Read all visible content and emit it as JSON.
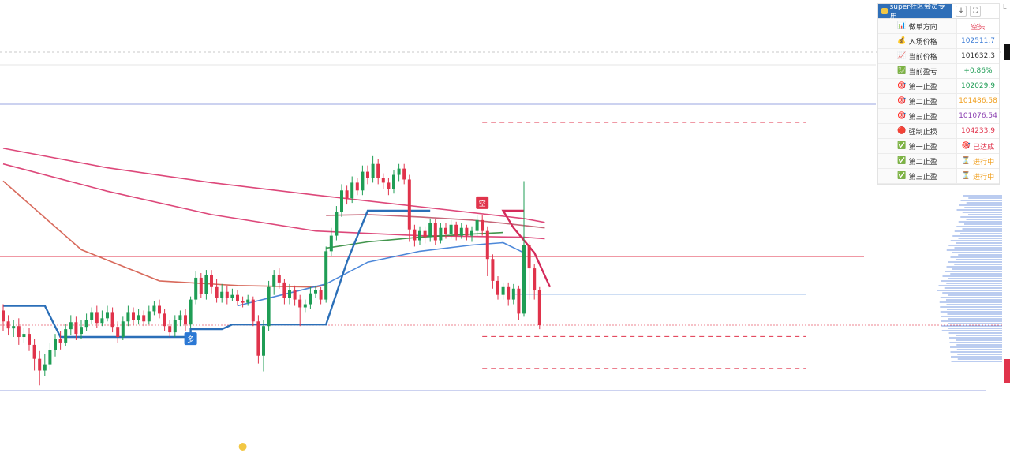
{
  "panel": {
    "title": "super社区会员专用",
    "buttons": [
      "↓",
      "⛶"
    ],
    "rows": [
      {
        "label": "做单方向",
        "value": "空头",
        "label_icon": "📊",
        "color": "#e0334b"
      },
      {
        "label": "入场价格",
        "value": "102511.7",
        "label_icon": "💰",
        "color": "#3a7bd5"
      },
      {
        "label": "当前价格",
        "value": "101632.3",
        "label_icon": "📈",
        "color": "#333333"
      },
      {
        "label": "当前盈亏",
        "value": "+0.86%",
        "label_icon": "💹",
        "color": "#1f9d55"
      },
      {
        "label": "第一止盈",
        "value": "102029.9",
        "label_icon": "🎯",
        "color": "#1f9d55"
      },
      {
        "label": "第二止盈",
        "value": "101486.58",
        "label_icon": "🎯",
        "color": "#f0a020"
      },
      {
        "label": "第三止盈",
        "value": "101076.54",
        "label_icon": "🎯",
        "color": "#8a3fb0"
      },
      {
        "label": "强制止损",
        "value": "104233.9",
        "label_icon": "🔴",
        "color": "#e0334b"
      },
      {
        "label": "第一止盈",
        "value": "已达成",
        "label_icon": "✅",
        "value_icon": "🎯",
        "color": "#e0334b"
      },
      {
        "label": "第二止盈",
        "value": "进行中",
        "label_icon": "✅",
        "value_icon": "⏳",
        "color": "#f0a020"
      },
      {
        "label": "第三止盈",
        "value": "进行中",
        "label_icon": "✅",
        "value_icon": "⏳",
        "color": "#f0a020"
      }
    ]
  },
  "corner_label": "L",
  "chart_data": {
    "type": "candlestick",
    "ylim": [
      99800,
      105600
    ],
    "colors": {
      "up": "#1f9d55",
      "down": "#e0334b"
    },
    "markers": [
      {
        "index": 36,
        "label": "多",
        "side": "long",
        "color": "#2b78d4"
      },
      {
        "index": 92,
        "label": "空",
        "side": "short",
        "color": "#e0334b"
      }
    ],
    "levels": [
      {
        "price": 104233.9,
        "style": "dashed",
        "color": "#e0334b"
      },
      {
        "price": 102511.7,
        "style": "solid",
        "color": "#e0334b"
      },
      {
        "price": 101632.3,
        "style": "dotted",
        "color": "#e0334b"
      },
      {
        "price": 102029.9,
        "style": "solid",
        "color": "#3a7bd5"
      },
      {
        "price": 101486.58,
        "style": "dashed",
        "color": "#e0334b"
      },
      {
        "price": 101076.54,
        "style": "dashed",
        "color": "#e0334b"
      }
    ],
    "candles": [
      [
        101820,
        101680,
        101900,
        101560
      ],
      [
        101680,
        101590,
        101760,
        101500
      ],
      [
        101590,
        101620,
        101700,
        101480
      ],
      [
        101620,
        101480,
        101720,
        101380
      ],
      [
        101480,
        101520,
        101600,
        101400
      ],
      [
        101520,
        101380,
        101600,
        101300
      ],
      [
        101380,
        101200,
        101450,
        101050
      ],
      [
        101200,
        101050,
        101300,
        100860
      ],
      [
        101050,
        101130,
        101260,
        100980
      ],
      [
        101130,
        101310,
        101400,
        101060
      ],
      [
        101310,
        101450,
        101520,
        101230
      ],
      [
        101450,
        101410,
        101560,
        101320
      ],
      [
        101410,
        101580,
        101650,
        101360
      ],
      [
        101580,
        101670,
        101760,
        101500
      ],
      [
        101670,
        101520,
        101740,
        101440
      ],
      [
        101520,
        101610,
        101700,
        101460
      ],
      [
        101610,
        101700,
        101780,
        101560
      ],
      [
        101700,
        101800,
        101860,
        101640
      ],
      [
        101800,
        101660,
        101880,
        101600
      ],
      [
        101660,
        101720,
        101820,
        101620
      ],
      [
        101720,
        101800,
        101880,
        101680
      ],
      [
        101800,
        101610,
        101860,
        101540
      ],
      [
        101610,
        101480,
        101680,
        101400
      ],
      [
        101480,
        101680,
        101740,
        101440
      ],
      [
        101680,
        101800,
        101880,
        101620
      ],
      [
        101800,
        101700,
        101860,
        101630
      ],
      [
        101700,
        101760,
        101840,
        101640
      ],
      [
        101760,
        101680,
        101820,
        101620
      ],
      [
        101680,
        101810,
        101880,
        101640
      ],
      [
        101810,
        101880,
        101940,
        101760
      ],
      [
        101880,
        101780,
        101960,
        101720
      ],
      [
        101780,
        101620,
        101840,
        101560
      ],
      [
        101620,
        101540,
        101700,
        101480
      ],
      [
        101540,
        101700,
        101760,
        101480
      ],
      [
        101700,
        101760,
        101820,
        101620
      ],
      [
        101760,
        101640,
        101840,
        101560
      ],
      [
        101640,
        101960,
        102000,
        101600
      ],
      [
        101960,
        102240,
        102320,
        101900
      ],
      [
        102240,
        102030,
        102300,
        101980
      ],
      [
        102030,
        102280,
        102340,
        101960
      ],
      [
        102280,
        102120,
        102340,
        102040
      ],
      [
        102120,
        101980,
        102220,
        101920
      ],
      [
        101980,
        102060,
        102160,
        101920
      ],
      [
        102060,
        101980,
        102140,
        101900
      ],
      [
        101980,
        102020,
        102100,
        101940
      ],
      [
        102020,
        101940,
        102080,
        101880
      ],
      [
        101940,
        101920,
        102000,
        101860
      ],
      [
        101920,
        101960,
        102020,
        101880
      ],
      [
        101960,
        101680,
        102000,
        101620
      ],
      [
        101680,
        101240,
        101760,
        101140
      ],
      [
        101240,
        101620,
        101700,
        101040
      ],
      [
        101620,
        102120,
        102200,
        101560
      ],
      [
        102120,
        102280,
        102340,
        102020
      ],
      [
        102280,
        102180,
        102360,
        102100
      ],
      [
        102180,
        101980,
        102220,
        101900
      ],
      [
        101980,
        102080,
        102160,
        101900
      ],
      [
        102080,
        101960,
        102140,
        101880
      ],
      [
        101960,
        101860,
        102020,
        101620
      ],
      [
        101860,
        101900,
        101960,
        101800
      ],
      [
        101900,
        102040,
        102120,
        101840
      ],
      [
        102040,
        102080,
        102140,
        101980
      ],
      [
        102080,
        101960,
        102120,
        101900
      ],
      [
        101960,
        102580,
        102640,
        101920
      ],
      [
        102580,
        102780,
        102880,
        102520
      ],
      [
        102780,
        103080,
        103160,
        102720
      ],
      [
        103080,
        103360,
        103440,
        103020
      ],
      [
        103360,
        103260,
        103420,
        103180
      ],
      [
        103260,
        103460,
        103540,
        103200
      ],
      [
        103460,
        103360,
        103520,
        103300
      ],
      [
        103360,
        103600,
        103680,
        103300
      ],
      [
        103600,
        103520,
        103680,
        103440
      ],
      [
        103520,
        103700,
        103800,
        103460
      ],
      [
        103700,
        103520,
        103760,
        103440
      ],
      [
        103520,
        103460,
        103580,
        103380
      ],
      [
        103460,
        103380,
        103520,
        103300
      ],
      [
        103380,
        103560,
        103620,
        103320
      ],
      [
        103560,
        103640,
        103700,
        103480
      ],
      [
        103640,
        103500,
        103700,
        103440
      ],
      [
        103500,
        102860,
        103560,
        102700
      ],
      [
        102860,
        102720,
        102920,
        102640
      ],
      [
        102720,
        102840,
        102900,
        102660
      ],
      [
        102840,
        102760,
        102900,
        102680
      ],
      [
        102760,
        102940,
        103000,
        102700
      ],
      [
        102940,
        102720,
        103000,
        102660
      ],
      [
        102720,
        102880,
        102940,
        102680
      ],
      [
        102880,
        102800,
        102940,
        102740
      ],
      [
        102800,
        102920,
        102980,
        102740
      ],
      [
        102920,
        102780,
        102960,
        102720
      ],
      [
        102780,
        102880,
        102940,
        102740
      ],
      [
        102880,
        102780,
        102920,
        102720
      ],
      [
        102780,
        102840,
        102900,
        102700
      ],
      [
        102840,
        102980,
        103040,
        102780
      ],
      [
        102980,
        102840,
        103040,
        102780
      ],
      [
        102840,
        102480,
        102900,
        102260
      ],
      [
        102480,
        102200,
        102540,
        102100
      ],
      [
        102200,
        102020,
        102260,
        101960
      ],
      [
        102020,
        102120,
        102180,
        101960
      ],
      [
        102120,
        101960,
        102180,
        101880
      ],
      [
        101960,
        102100,
        102160,
        101900
      ],
      [
        102100,
        101780,
        102140,
        101700
      ],
      [
        101780,
        102660,
        103480,
        101740
      ],
      [
        102660,
        102360,
        102700,
        101960
      ],
      [
        102360,
        102080,
        102420,
        101960
      ],
      [
        102080,
        101632,
        102120,
        101580
      ]
    ],
    "ma_lines": [
      {
        "name": "",
        "color": "#d9346b",
        "values_at": [
          [
            0,
            103900
          ],
          [
            20,
            103650
          ],
          [
            40,
            103460
          ],
          [
            60,
            103300
          ],
          [
            80,
            103150
          ],
          [
            100,
            103000
          ],
          [
            104,
            102950
          ]
        ]
      },
      {
        "name": "",
        "color": "#d9346b",
        "values_at": [
          [
            0,
            103700
          ],
          [
            20,
            103350
          ],
          [
            40,
            103050
          ],
          [
            60,
            102840
          ],
          [
            80,
            102780
          ],
          [
            100,
            102760
          ],
          [
            104,
            102740
          ]
        ]
      },
      {
        "name": "",
        "color": "#d45a4a",
        "values_at": [
          [
            0,
            103480
          ],
          [
            15,
            102600
          ],
          [
            30,
            102200
          ],
          [
            45,
            102140
          ],
          [
            60,
            102120
          ],
          [
            62,
            102150
          ]
        ]
      },
      {
        "name": "",
        "color": "#3a7bd5",
        "values_at": [
          [
            45,
            101880
          ],
          [
            62,
            102160
          ],
          [
            70,
            102440
          ],
          [
            80,
            102580
          ],
          [
            90,
            102660
          ],
          [
            96,
            102690
          ],
          [
            100,
            102560
          ]
        ]
      },
      {
        "name": "",
        "color": "#2e8a3a",
        "values_at": [
          [
            62,
            102620
          ],
          [
            70,
            102700
          ],
          [
            80,
            102760
          ],
          [
            90,
            102800
          ],
          [
            96,
            102820
          ]
        ]
      },
      {
        "name": "",
        "color": "#c0566a",
        "values_at": [
          [
            62,
            103040
          ],
          [
            70,
            103050
          ],
          [
            80,
            103020
          ],
          [
            90,
            102980
          ],
          [
            96,
            102940
          ],
          [
            104,
            102880
          ]
        ]
      }
    ],
    "supertrend": {
      "color_up": "#2b6fb8",
      "color_down": "#d42a5a",
      "points": [
        [
          0,
          101880
        ],
        [
          8,
          101880
        ],
        [
          11,
          101480
        ],
        [
          36,
          101480
        ],
        [
          36,
          101580
        ],
        [
          42,
          101580
        ],
        [
          44,
          101640
        ],
        [
          62,
          101640
        ],
        [
          66,
          102440
        ],
        [
          70,
          103100
        ],
        [
          82,
          103100
        ],
        [
          100,
          103100
        ],
        [
          96,
          103100
        ],
        [
          98,
          102880
        ],
        [
          102,
          102560
        ],
        [
          105,
          102120
        ]
      ]
    }
  }
}
